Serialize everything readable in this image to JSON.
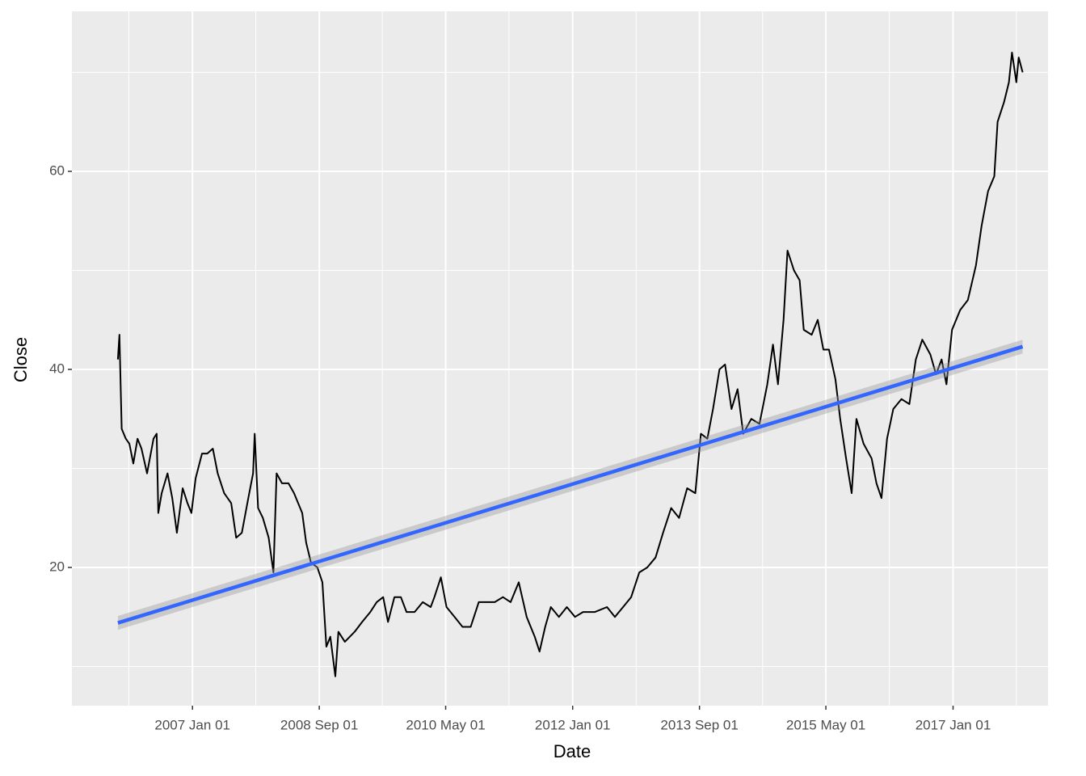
{
  "chart_data": {
    "type": "line",
    "x_label": "Date",
    "y_label": "Close",
    "color": "#000000",
    "x": [
      "2006-01-08",
      "2006-01-15",
      "2006-01-26",
      "2006-02-15",
      "2006-03-04",
      "2006-03-23",
      "2006-04-12",
      "2006-05-01",
      "2006-05-28",
      "2006-06-28",
      "2006-07-13",
      "2006-07-21",
      "2006-08-06",
      "2006-09-03",
      "2006-09-26",
      "2006-10-18",
      "2006-11-15",
      "2006-12-08",
      "2006-12-27",
      "2007-01-16",
      "2007-02-16",
      "2007-03-13",
      "2007-04-09",
      "2007-05-02",
      "2007-06-02",
      "2007-07-06",
      "2007-07-30",
      "2007-08-26",
      "2007-09-26",
      "2007-10-19",
      "2007-10-27",
      "2007-11-12",
      "2007-12-05",
      "2008-01-02",
      "2008-01-25",
      "2008-02-09",
      "2008-03-06",
      "2008-04-06",
      "2008-05-03",
      "2008-06-11",
      "2008-06-30",
      "2008-07-23",
      "2008-08-23",
      "2008-09-16",
      "2008-10-05",
      "2008-10-24",
      "2008-11-17",
      "2008-12-02",
      "2009-01-02",
      "2009-02-18",
      "2009-03-26",
      "2009-05-04",
      "2009-06-04",
      "2009-07-05",
      "2009-07-28",
      "2009-08-28",
      "2009-09-28",
      "2009-10-25",
      "2009-12-03",
      "2010-01-11",
      "2010-02-18",
      "2010-03-08",
      "2010-04-08",
      "2010-05-05",
      "2010-06-13",
      "2010-07-21",
      "2010-08-29",
      "2010-10-07",
      "2010-11-15",
      "2010-12-23",
      "2011-01-31",
      "2011-03-09",
      "2011-04-17",
      "2011-05-25",
      "2011-07-03",
      "2011-07-26",
      "2011-08-22",
      "2011-09-18",
      "2011-10-27",
      "2011-12-04",
      "2012-01-12",
      "2012-02-20",
      "2012-04-17",
      "2012-06-14",
      "2012-07-22",
      "2012-08-30",
      "2012-10-08",
      "2012-11-16",
      "2012-12-24",
      "2013-02-02",
      "2013-03-10",
      "2013-04-18",
      "2013-05-26",
      "2013-07-04",
      "2013-08-12",
      "2013-09-08",
      "2013-10-09",
      "2013-11-05",
      "2013-12-06",
      "2014-01-02",
      "2014-02-02",
      "2014-03-03",
      "2014-03-30",
      "2014-05-08",
      "2014-06-16",
      "2014-07-24",
      "2014-08-20",
      "2014-09-13",
      "2014-10-10",
      "2014-10-29",
      "2014-11-29",
      "2014-12-26",
      "2015-01-15",
      "2015-02-22",
      "2015-03-23",
      "2015-04-19",
      "2015-05-16",
      "2015-06-16",
      "2015-07-09",
      "2015-08-06",
      "2015-09-02",
      "2015-09-25",
      "2015-10-29",
      "2015-12-07",
      "2015-12-30",
      "2016-01-23",
      "2016-02-19",
      "2016-03-20",
      "2016-04-28",
      "2016-06-05",
      "2016-07-06",
      "2016-08-06",
      "2016-09-14",
      "2016-10-11",
      "2016-11-07",
      "2016-11-30",
      "2016-12-27",
      "2017-02-04",
      "2017-03-13",
      "2017-04-21",
      "2017-05-18",
      "2017-06-18",
      "2017-07-18",
      "2017-08-03",
      "2017-09-03",
      "2017-09-26",
      "2017-10-11",
      "2017-11-01",
      "2017-11-12",
      "2017-12-01"
    ],
    "values": [
      41,
      43.5,
      34,
      33,
      32.5,
      30.5,
      33,
      32,
      29.5,
      33,
      33.5,
      25.5,
      27.5,
      29.5,
      27,
      23.5,
      28,
      26.5,
      25.5,
      29,
      31.5,
      31.5,
      32,
      29.5,
      27.5,
      26.5,
      23,
      23.5,
      27,
      29.5,
      33.5,
      26,
      25,
      23,
      19.5,
      29.5,
      28.5,
      28.5,
      27.5,
      25.5,
      22.5,
      20.5,
      20,
      18.5,
      12,
      13,
      9,
      13.5,
      12.5,
      13.5,
      14.5,
      15.5,
      16.5,
      17,
      14.5,
      17,
      17,
      15.5,
      15.5,
      16.5,
      16,
      17,
      19,
      16,
      15,
      14,
      14,
      16.5,
      16.5,
      16.5,
      17,
      16.5,
      18.5,
      15,
      13,
      11.5,
      14,
      16,
      15,
      16,
      15,
      15.5,
      15.5,
      16,
      15,
      16,
      17,
      19.5,
      20,
      21,
      23.5,
      26,
      25,
      28,
      27.5,
      33.5,
      33,
      36,
      40,
      40.5,
      36,
      38,
      33.5,
      35,
      34.5,
      38.5,
      42.5,
      38.5,
      45,
      52,
      50,
      49,
      44,
      43.5,
      45,
      42,
      42,
      39,
      35,
      31,
      27.5,
      35,
      32.5,
      31,
      28.5,
      27,
      33,
      36,
      37,
      36.5,
      41,
      43,
      41.5,
      39.5,
      41,
      38.5,
      44,
      46,
      47,
      50.5,
      54.5,
      58,
      59.5,
      65,
      67,
      69,
      72,
      69,
      71.5,
      70
    ],
    "trend": {
      "x": [
        "2006-01-08",
        "2017-12-01"
      ],
      "values": [
        14.4,
        42.3
      ],
      "lower": [
        13.7,
        41.6
      ],
      "upper": [
        15.1,
        43.0
      ],
      "color": "#3366ff"
    },
    "xlim": [
      "2005-06-01",
      "2018-04-02"
    ],
    "xticks": [
      {
        "value": "2007-01-01",
        "label": "2007 Jan 01"
      },
      {
        "value": "2008-09-01",
        "label": "2008 Sep 01"
      },
      {
        "value": "2010-05-01",
        "label": "2010 May 01"
      },
      {
        "value": "2012-01-01",
        "label": "2012 Jan 01"
      },
      {
        "value": "2013-09-01",
        "label": "2013 Sep 01"
      },
      {
        "value": "2015-05-01",
        "label": "2015 May 01"
      },
      {
        "value": "2017-01-01",
        "label": "2017 Jan 01"
      }
    ],
    "xminorticks": [
      "2006-03-01",
      "2007-11-01",
      "2009-07-01",
      "2011-03-01",
      "2012-11-01",
      "2014-07-01",
      "2016-03-01",
      "2017-11-01"
    ],
    "ylim": [
      6.04,
      76.16
    ],
    "yticks": [
      20,
      40,
      60
    ],
    "yminorticks": [
      10,
      30,
      50,
      70
    ],
    "grid": true
  }
}
